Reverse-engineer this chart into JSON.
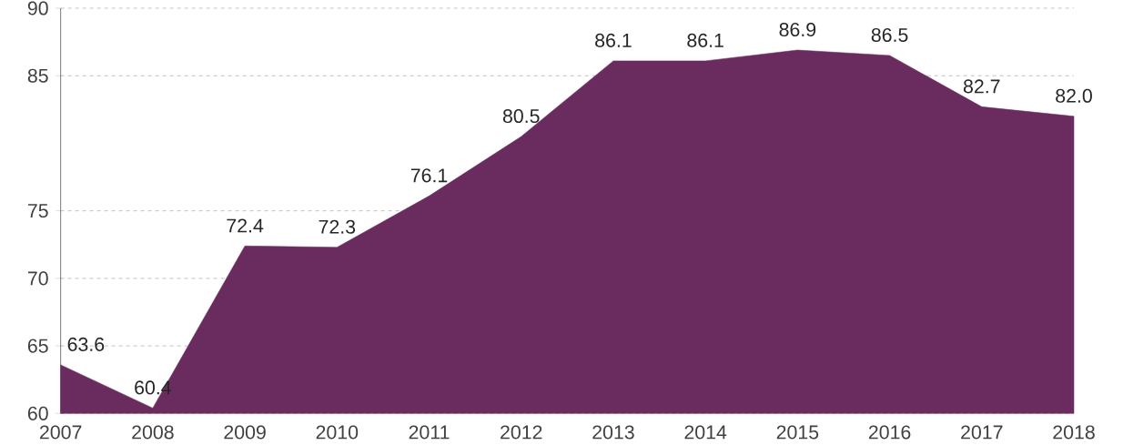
{
  "chart_data": {
    "type": "area",
    "categories": [
      "2007",
      "2008",
      "2009",
      "2010",
      "2011",
      "2012",
      "2013",
      "2014",
      "2015",
      "2016",
      "2017",
      "2018"
    ],
    "values": [
      63.6,
      60.4,
      72.4,
      72.3,
      76.1,
      80.5,
      86.1,
      86.1,
      86.9,
      86.5,
      82.7,
      82.0
    ],
    "color": "#6a2b5f",
    "ylim": [
      60,
      90
    ],
    "yticks": [
      60,
      65,
      70,
      75,
      85,
      90
    ],
    "value_labels": [
      "63.6",
      "60.4",
      "72.4",
      "72.3",
      "76.1",
      "80.5",
      "86.1",
      "86.1",
      "86.9",
      "86.5",
      "82.7",
      "82.0"
    ],
    "grid": "y"
  }
}
